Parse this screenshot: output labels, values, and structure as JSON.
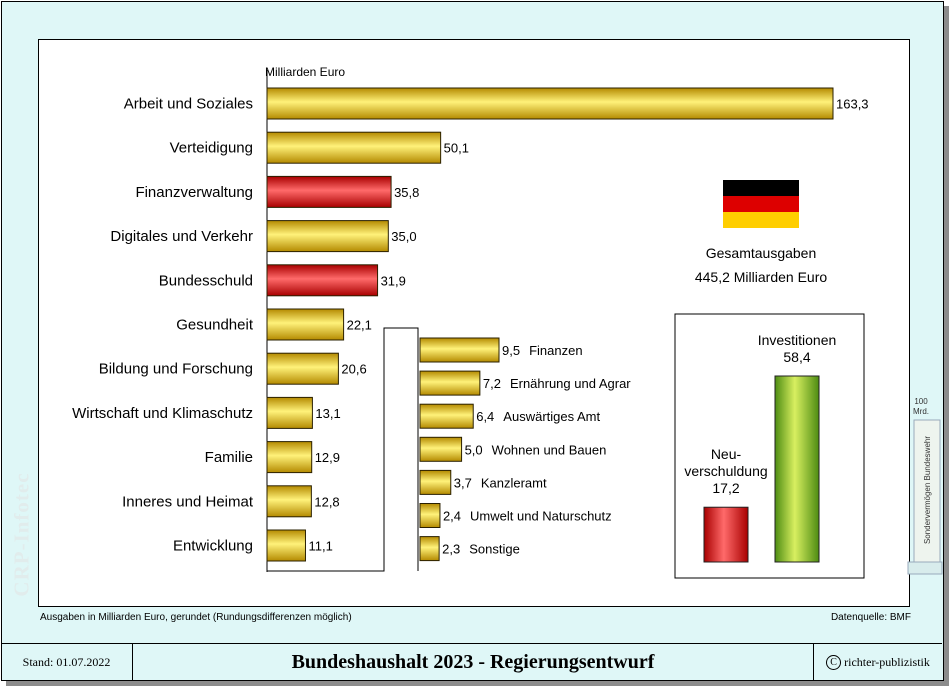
{
  "chart_data": {
    "type": "bar",
    "unit_label": "Milliarden Euro",
    "categories": [
      "Arbeit und Soziales",
      "Verteidigung",
      "Finanzverwaltung",
      "Digitales und Verkehr",
      "Bundesschuld",
      "Gesundheit",
      "Bildung und Forschung",
      "Wirtschaft und Klimaschutz",
      "Familie",
      "Inneres und Heimat",
      "Entwicklung"
    ],
    "values": [
      163.3,
      50.1,
      35.8,
      35.0,
      31.9,
      22.1,
      20.6,
      13.1,
      12.9,
      12.8,
      11.1
    ],
    "value_labels": [
      "163,3",
      "50,1",
      "35,8",
      "35,0",
      "31,9",
      "22,1",
      "20,6",
      "13,1",
      "12,9",
      "12,8",
      "11,1"
    ],
    "highlighted": [
      "Finanzverwaltung",
      "Bundesschuld"
    ],
    "sub_breakdown": {
      "categories": [
        "Finanzen",
        "Ernährung und Agrar",
        "Auswärtiges Amt",
        "Wohnen und Bauen",
        "Kanzleramt",
        "Umwelt und Naturschutz",
        "Sonstige"
      ],
      "values": [
        9.5,
        7.2,
        6.4,
        5.0,
        3.7,
        2.4,
        2.3
      ],
      "value_labels": [
        "9,5",
        "7,2",
        "6,4",
        "5,0",
        "3,7",
        "2,4",
        "2,3"
      ]
    },
    "total": {
      "label": "Gesamtausgaben",
      "value": 445.2,
      "value_label": "445,2 Milliarden Euro"
    },
    "inset": {
      "items": [
        {
          "name": "Neu-verschuldung",
          "lines": [
            "Neu-",
            "verschuldung"
          ],
          "value": 17.2,
          "value_label": "17,2"
        },
        {
          "name": "Investitionen",
          "lines": [
            "Investitionen"
          ],
          "value": 58.4,
          "value_label": "58,4"
        }
      ]
    },
    "side_tab": {
      "value_lines": [
        "100",
        "Mrd."
      ],
      "label": "Sondervermögen Bundeswehr"
    }
  },
  "notes": {
    "left": "Ausgaben in Milliarden Euro, gerundet (Rundungsdifferenzen möglich)",
    "right": "Datenquelle: BMF"
  },
  "watermark": "CRP-Infotec",
  "footer": {
    "date": "Stand: 01.07.2022",
    "title": "Bundeshaushalt 2023 - Regierungsentwurf",
    "copyright": "richter-publizistik"
  },
  "colors": {
    "gold_light": "#fff27a",
    "gold_dark": "#b48a00",
    "red_light": "#ff6a6a",
    "red_dark": "#a80000",
    "green_light": "#d8ef60",
    "green_dark": "#4d8c12",
    "flag_black": "#000000",
    "flag_red": "#dd0000",
    "flag_gold": "#ffce00"
  }
}
